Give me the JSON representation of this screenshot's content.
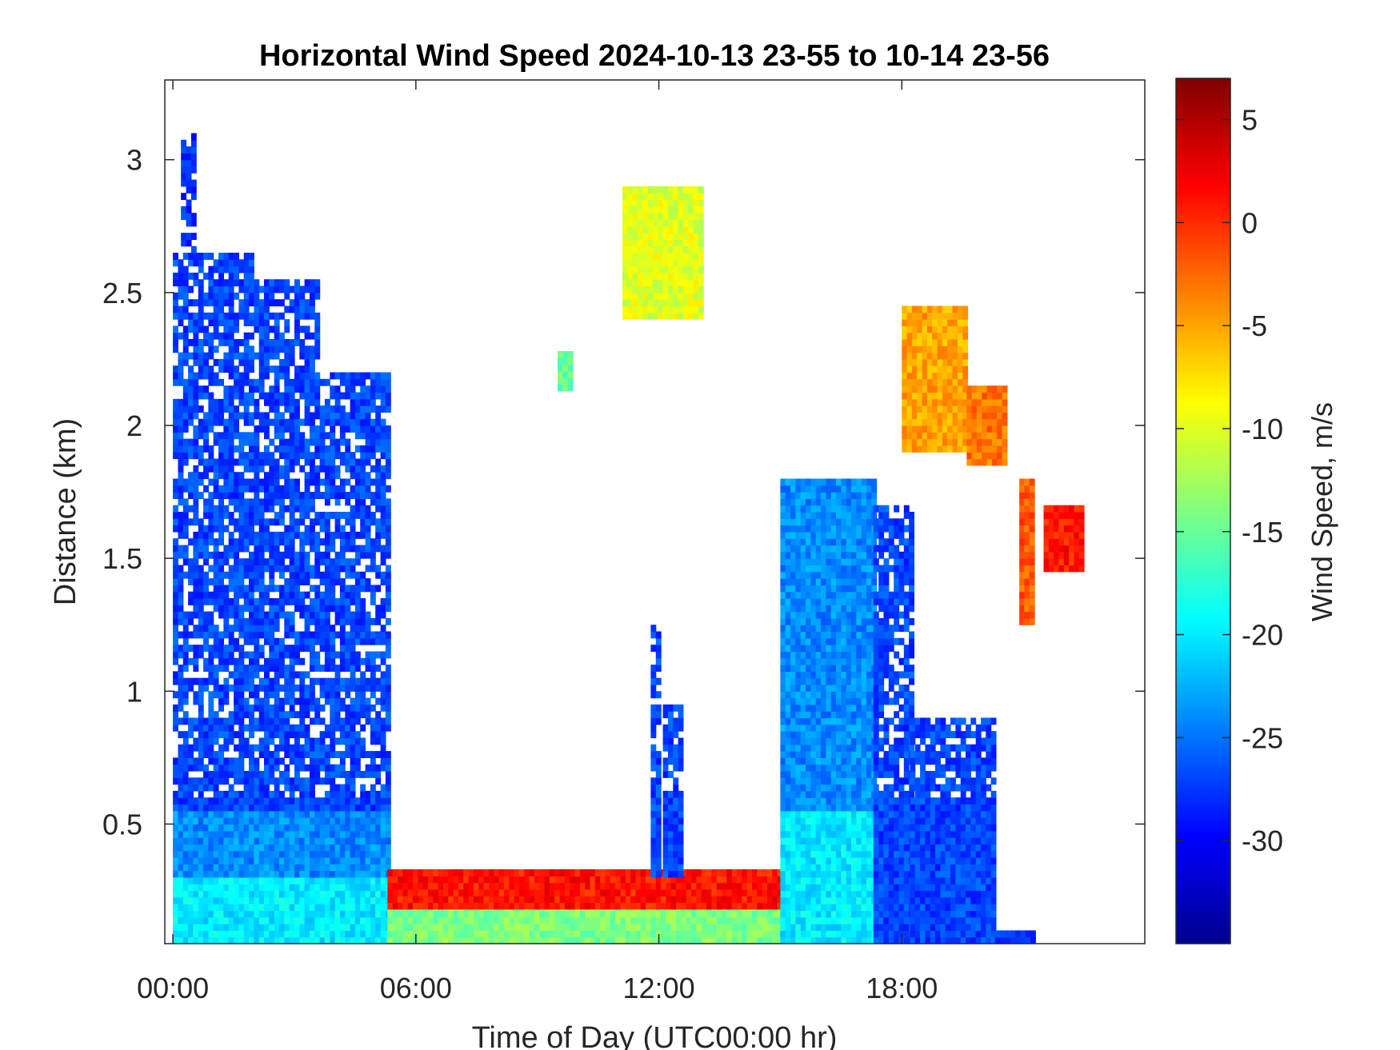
{
  "chart_data": {
    "type": "heatmap",
    "title": "Horizontal Wind Speed 2024-10-13 23-55 to 10-14 23-56",
    "xlabel": "Time of Day (UTC00:00 hr)",
    "ylabel": "Distance (km)",
    "xlim": [
      -0.2,
      24.0
    ],
    "ylim": [
      0.05,
      3.3
    ],
    "xticks": [
      0,
      6,
      12,
      18
    ],
    "xtick_labels": [
      "00:00",
      "06:00",
      "12:00",
      "18:00"
    ],
    "yticks": [
      0.5,
      1,
      1.5,
      2,
      2.5,
      3
    ],
    "ytick_labels": [
      "0.5",
      "1",
      "1.5",
      "2",
      "2.5",
      "3"
    ],
    "grid": false,
    "colorbar": {
      "label": "Wind Speed, m/s",
      "colormap": "jet",
      "range": [
        -35,
        7
      ],
      "ticks": [
        5,
        0,
        -5,
        -10,
        -15,
        -20,
        -25,
        -30
      ],
      "tick_labels": [
        "5",
        "0",
        "-5",
        "-10",
        "-15",
        "-20",
        "-25",
        "-30"
      ]
    },
    "regions": [
      {
        "x": [
          0.0,
          5.3
        ],
        "y": [
          0.05,
          0.3
        ],
        "value": -20
      },
      {
        "x": [
          0.0,
          5.3
        ],
        "y": [
          0.3,
          0.55
        ],
        "value": -24
      },
      {
        "x": [
          0.0,
          5.3
        ],
        "y": [
          0.55,
          2.2
        ],
        "value": -27
      },
      {
        "x": [
          0.0,
          2.0
        ],
        "y": [
          2.2,
          2.65
        ],
        "value": -27
      },
      {
        "x": [
          2.0,
          3.6
        ],
        "y": [
          2.2,
          2.55
        ],
        "value": -27
      },
      {
        "x": [
          0.2,
          0.5
        ],
        "y": [
          2.65,
          3.08
        ],
        "value": -28
      },
      {
        "x": [
          5.3,
          15.0
        ],
        "y": [
          0.05,
          0.18
        ],
        "value": -14
      },
      {
        "x": [
          5.3,
          15.0
        ],
        "y": [
          0.18,
          0.32
        ],
        "value": 1
      },
      {
        "x": [
          11.8,
          12.0
        ],
        "y": [
          0.3,
          1.25
        ],
        "value": -27
      },
      {
        "x": [
          12.1,
          12.5
        ],
        "y": [
          0.3,
          0.95
        ],
        "value": -27
      },
      {
        "x": [
          11.1,
          13.0
        ],
        "y": [
          2.4,
          2.9
        ],
        "value": -10
      },
      {
        "x": [
          9.5,
          9.8
        ],
        "y": [
          2.13,
          2.26
        ],
        "value": -15
      },
      {
        "x": [
          15.0,
          17.3
        ],
        "y": [
          0.05,
          0.55
        ],
        "value": -20
      },
      {
        "x": [
          15.0,
          17.3
        ],
        "y": [
          0.55,
          1.8
        ],
        "value": -24
      },
      {
        "x": [
          17.3,
          18.2
        ],
        "y": [
          0.05,
          1.7
        ],
        "value": -27
      },
      {
        "x": [
          18.2,
          20.3
        ],
        "y": [
          0.05,
          0.9
        ],
        "value": -27
      },
      {
        "x": [
          20.3,
          21.2
        ],
        "y": [
          0.05,
          0.1
        ],
        "value": -27
      },
      {
        "x": [
          18.0,
          19.6
        ],
        "y": [
          1.9,
          2.45
        ],
        "value": -5
      },
      {
        "x": [
          19.6,
          20.5
        ],
        "y": [
          1.85,
          2.15
        ],
        "value": -3
      },
      {
        "x": [
          20.9,
          21.2
        ],
        "y": [
          1.25,
          1.8
        ],
        "value": -2
      },
      {
        "x": [
          21.5,
          22.5
        ],
        "y": [
          1.45,
          1.68
        ],
        "value": 1
      }
    ]
  }
}
